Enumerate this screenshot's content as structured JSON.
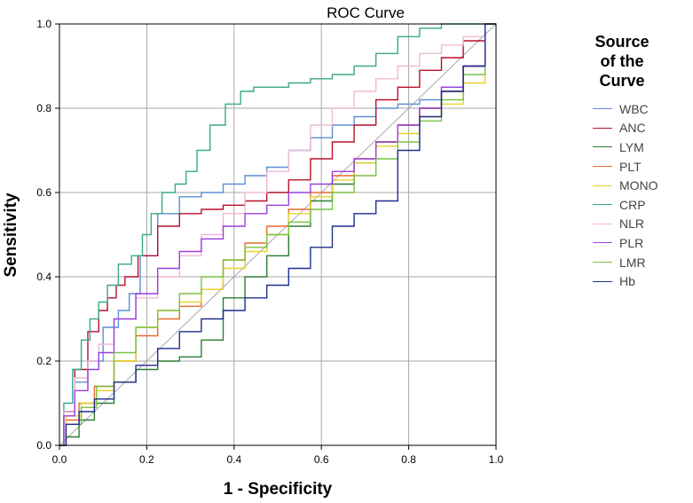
{
  "chart_data": {
    "type": "line",
    "title": "ROC Curve",
    "xlabel": "1 - Specificity",
    "ylabel": "Sensitivity",
    "xlim": [
      0,
      1
    ],
    "ylim": [
      0,
      1
    ],
    "xticks": [
      "0.0",
      "0.2",
      "0.4",
      "0.6",
      "0.8",
      "1.0"
    ],
    "yticks": [
      "0.0",
      "0.2",
      "0.4",
      "0.6",
      "0.8",
      "1.0"
    ],
    "grid": true,
    "legend_title": "Source of the Curve",
    "legend_title_lines": [
      "Source",
      "of the",
      "Curve"
    ],
    "legend_position": "right",
    "series": [
      {
        "name": "WBC",
        "color": "#5b8fd6",
        "x": [
          0,
          0.02,
          0.05,
          0.08,
          0.12,
          0.15,
          0.17,
          0.2,
          0.25,
          0.3,
          0.35,
          0.4,
          0.45,
          0.5,
          0.55,
          0.6,
          0.65,
          0.7,
          0.75,
          0.8,
          0.85,
          0.9,
          0.95,
          1.0
        ],
        "y": [
          0,
          0.08,
          0.15,
          0.2,
          0.28,
          0.32,
          0.36,
          0.45,
          0.55,
          0.59,
          0.6,
          0.62,
          0.64,
          0.66,
          0.7,
          0.73,
          0.76,
          0.78,
          0.8,
          0.81,
          0.82,
          0.85,
          0.9,
          1.0
        ]
      },
      {
        "name": "ANC",
        "color": "#b8112b",
        "x": [
          0,
          0.02,
          0.05,
          0.08,
          0.1,
          0.12,
          0.14,
          0.16,
          0.2,
          0.25,
          0.3,
          0.35,
          0.4,
          0.45,
          0.5,
          0.55,
          0.6,
          0.65,
          0.7,
          0.75,
          0.8,
          0.85,
          0.9,
          0.95,
          1.0
        ],
        "y": [
          0,
          0.08,
          0.18,
          0.27,
          0.32,
          0.35,
          0.38,
          0.4,
          0.45,
          0.52,
          0.55,
          0.56,
          0.57,
          0.58,
          0.6,
          0.63,
          0.68,
          0.72,
          0.76,
          0.82,
          0.85,
          0.89,
          0.92,
          0.96,
          1.0
        ]
      },
      {
        "name": "LYM",
        "color": "#2e7d32",
        "x": [
          0,
          0.03,
          0.06,
          0.1,
          0.15,
          0.2,
          0.25,
          0.3,
          0.35,
          0.4,
          0.45,
          0.5,
          0.55,
          0.6,
          0.65,
          0.7,
          0.75,
          0.8,
          0.85,
          0.9,
          0.95,
          1.0
        ],
        "y": [
          0,
          0.02,
          0.06,
          0.1,
          0.15,
          0.18,
          0.2,
          0.21,
          0.25,
          0.35,
          0.4,
          0.45,
          0.52,
          0.58,
          0.62,
          0.67,
          0.72,
          0.76,
          0.8,
          0.84,
          0.9,
          1.0
        ]
      },
      {
        "name": "PLT",
        "color": "#e8692e",
        "x": [
          0,
          0.03,
          0.06,
          0.1,
          0.15,
          0.2,
          0.25,
          0.3,
          0.35,
          0.4,
          0.45,
          0.5,
          0.55,
          0.6,
          0.65,
          0.7,
          0.75,
          0.8,
          0.85,
          0.9,
          0.95,
          1.0
        ],
        "y": [
          0,
          0.06,
          0.1,
          0.14,
          0.2,
          0.26,
          0.3,
          0.33,
          0.37,
          0.44,
          0.48,
          0.52,
          0.56,
          0.6,
          0.64,
          0.68,
          0.72,
          0.76,
          0.8,
          0.84,
          0.9,
          1.0
        ]
      },
      {
        "name": "MONO",
        "color": "#e6d22e",
        "x": [
          0,
          0.03,
          0.07,
          0.1,
          0.15,
          0.2,
          0.25,
          0.3,
          0.35,
          0.4,
          0.45,
          0.5,
          0.55,
          0.6,
          0.65,
          0.7,
          0.75,
          0.8,
          0.85,
          0.9,
          0.95,
          1.0
        ],
        "y": [
          0,
          0.07,
          0.1,
          0.13,
          0.2,
          0.28,
          0.32,
          0.34,
          0.37,
          0.42,
          0.46,
          0.5,
          0.55,
          0.59,
          0.63,
          0.67,
          0.71,
          0.74,
          0.78,
          0.81,
          0.86,
          1.0
        ]
      },
      {
        "name": "CRP",
        "color": "#3aa88c",
        "x": [
          0,
          0.02,
          0.04,
          0.06,
          0.08,
          0.1,
          0.12,
          0.15,
          0.18,
          0.2,
          0.22,
          0.25,
          0.28,
          0.3,
          0.33,
          0.36,
          0.4,
          0.43,
          0.46,
          0.5,
          0.55,
          0.6,
          0.65,
          0.7,
          0.75,
          0.8,
          0.85,
          0.9,
          0.95,
          1.0
        ],
        "y": [
          0,
          0.1,
          0.18,
          0.25,
          0.3,
          0.34,
          0.38,
          0.43,
          0.45,
          0.5,
          0.55,
          0.6,
          0.62,
          0.65,
          0.7,
          0.76,
          0.81,
          0.84,
          0.85,
          0.85,
          0.86,
          0.87,
          0.88,
          0.9,
          0.93,
          0.97,
          0.99,
          1.0,
          1.0,
          1.0
        ]
      },
      {
        "name": "NLR",
        "color": "#f0b8d8",
        "x": [
          0,
          0.02,
          0.05,
          0.08,
          0.1,
          0.15,
          0.2,
          0.25,
          0.3,
          0.35,
          0.4,
          0.45,
          0.5,
          0.55,
          0.6,
          0.65,
          0.7,
          0.75,
          0.8,
          0.85,
          0.9,
          0.95,
          1.0
        ],
        "y": [
          0,
          0.08,
          0.16,
          0.2,
          0.24,
          0.3,
          0.35,
          0.4,
          0.45,
          0.5,
          0.55,
          0.6,
          0.65,
          0.7,
          0.76,
          0.8,
          0.84,
          0.87,
          0.9,
          0.93,
          0.95,
          0.97,
          1.0
        ]
      },
      {
        "name": "PLR",
        "color": "#9b3fe0",
        "x": [
          0,
          0.02,
          0.05,
          0.08,
          0.1,
          0.15,
          0.2,
          0.25,
          0.3,
          0.35,
          0.4,
          0.45,
          0.5,
          0.55,
          0.6,
          0.65,
          0.7,
          0.75,
          0.8,
          0.85,
          0.9,
          0.95,
          1.0
        ],
        "y": [
          0,
          0.07,
          0.13,
          0.18,
          0.22,
          0.3,
          0.36,
          0.42,
          0.46,
          0.49,
          0.52,
          0.55,
          0.57,
          0.6,
          0.62,
          0.65,
          0.68,
          0.72,
          0.76,
          0.8,
          0.85,
          0.9,
          1.0
        ]
      },
      {
        "name": "LMR",
        "color": "#7cc242",
        "x": [
          0,
          0.03,
          0.07,
          0.1,
          0.15,
          0.2,
          0.25,
          0.3,
          0.35,
          0.4,
          0.45,
          0.5,
          0.55,
          0.6,
          0.65,
          0.7,
          0.75,
          0.8,
          0.85,
          0.9,
          0.95,
          1.0
        ],
        "y": [
          0,
          0.05,
          0.09,
          0.14,
          0.22,
          0.28,
          0.32,
          0.36,
          0.4,
          0.44,
          0.47,
          0.5,
          0.53,
          0.56,
          0.6,
          0.64,
          0.68,
          0.72,
          0.77,
          0.82,
          0.88,
          1.0
        ]
      },
      {
        "name": "Hb",
        "color": "#1f2e8f",
        "x": [
          0,
          0.03,
          0.06,
          0.1,
          0.15,
          0.2,
          0.25,
          0.3,
          0.35,
          0.4,
          0.45,
          0.5,
          0.55,
          0.6,
          0.65,
          0.7,
          0.75,
          0.8,
          0.85,
          0.9,
          0.95,
          1.0
        ],
        "y": [
          0,
          0.05,
          0.08,
          0.11,
          0.15,
          0.19,
          0.23,
          0.27,
          0.3,
          0.32,
          0.35,
          0.38,
          0.42,
          0.47,
          0.52,
          0.55,
          0.58,
          0.7,
          0.78,
          0.84,
          0.9,
          1.0
        ]
      }
    ]
  }
}
